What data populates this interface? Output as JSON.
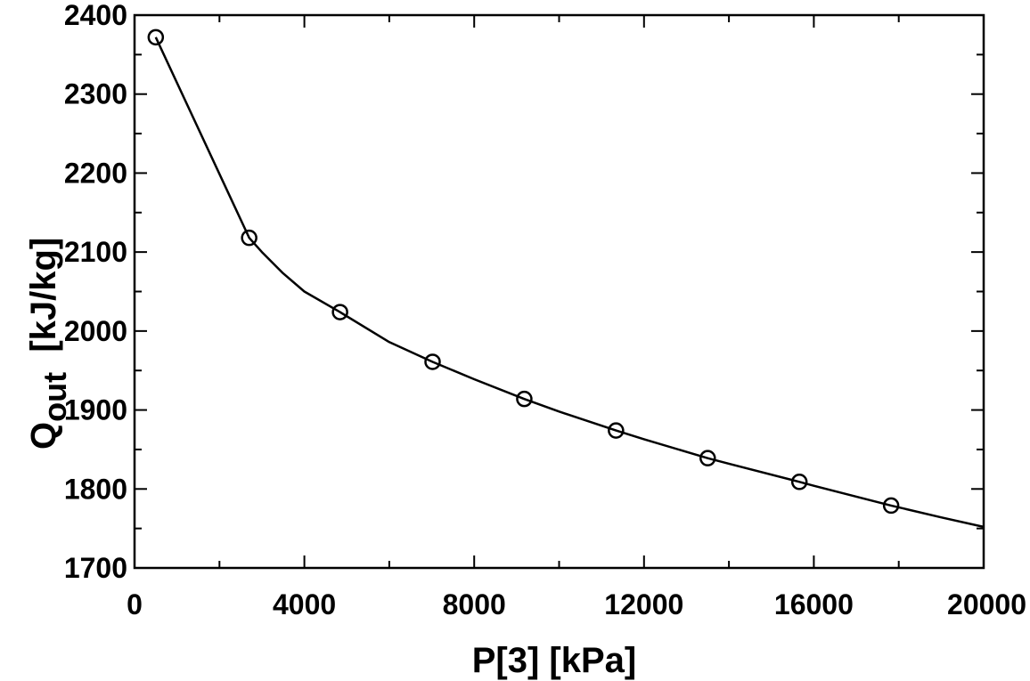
{
  "chart_data": {
    "type": "line",
    "title": "",
    "xlabel": "P[3]  [kPa]",
    "ylabel_main": "Q",
    "ylabel_sub": "out",
    "ylabel_units": "  [kJ/kg]",
    "xlim": [
      0,
      20000
    ],
    "ylim": [
      1700,
      2400
    ],
    "x_major_ticks": [
      0,
      4000,
      8000,
      12000,
      16000,
      20000
    ],
    "x_tick_labels": [
      "0",
      "4000",
      "8000",
      "12000",
      "16000",
      "20000"
    ],
    "x_minor_step": 2000,
    "y_major_ticks": [
      1700,
      1800,
      1900,
      2000,
      2100,
      2200,
      2300,
      2400
    ],
    "y_tick_labels": [
      "1700",
      "1800",
      "1900",
      "2000",
      "2100",
      "2200",
      "2300",
      "2400"
    ],
    "y_minor_step": 50,
    "grid": false,
    "series": [
      {
        "line_x": [
          500,
          2700,
          3000,
          3500,
          4000,
          4840,
          6000,
          7020,
          8000,
          9180,
          10000,
          11340,
          12000,
          13500,
          14000,
          15660,
          16000,
          17820,
          19000,
          20000
        ],
        "line_y": [
          2372,
          2118,
          2100,
          2073,
          2050,
          2024,
          1986,
          1961,
          1939,
          1914,
          1898,
          1874,
          1863,
          1839,
          1832,
          1809,
          1804,
          1779,
          1764,
          1752
        ],
        "marker_x": [
          500,
          2700,
          4840,
          7020,
          9180,
          11340,
          13500,
          15660,
          17820
        ],
        "marker_y": [
          2372,
          2118,
          2024,
          1961,
          1914,
          1874,
          1839,
          1809,
          1779
        ],
        "marker": "open-circle",
        "color": "#000000"
      }
    ]
  }
}
